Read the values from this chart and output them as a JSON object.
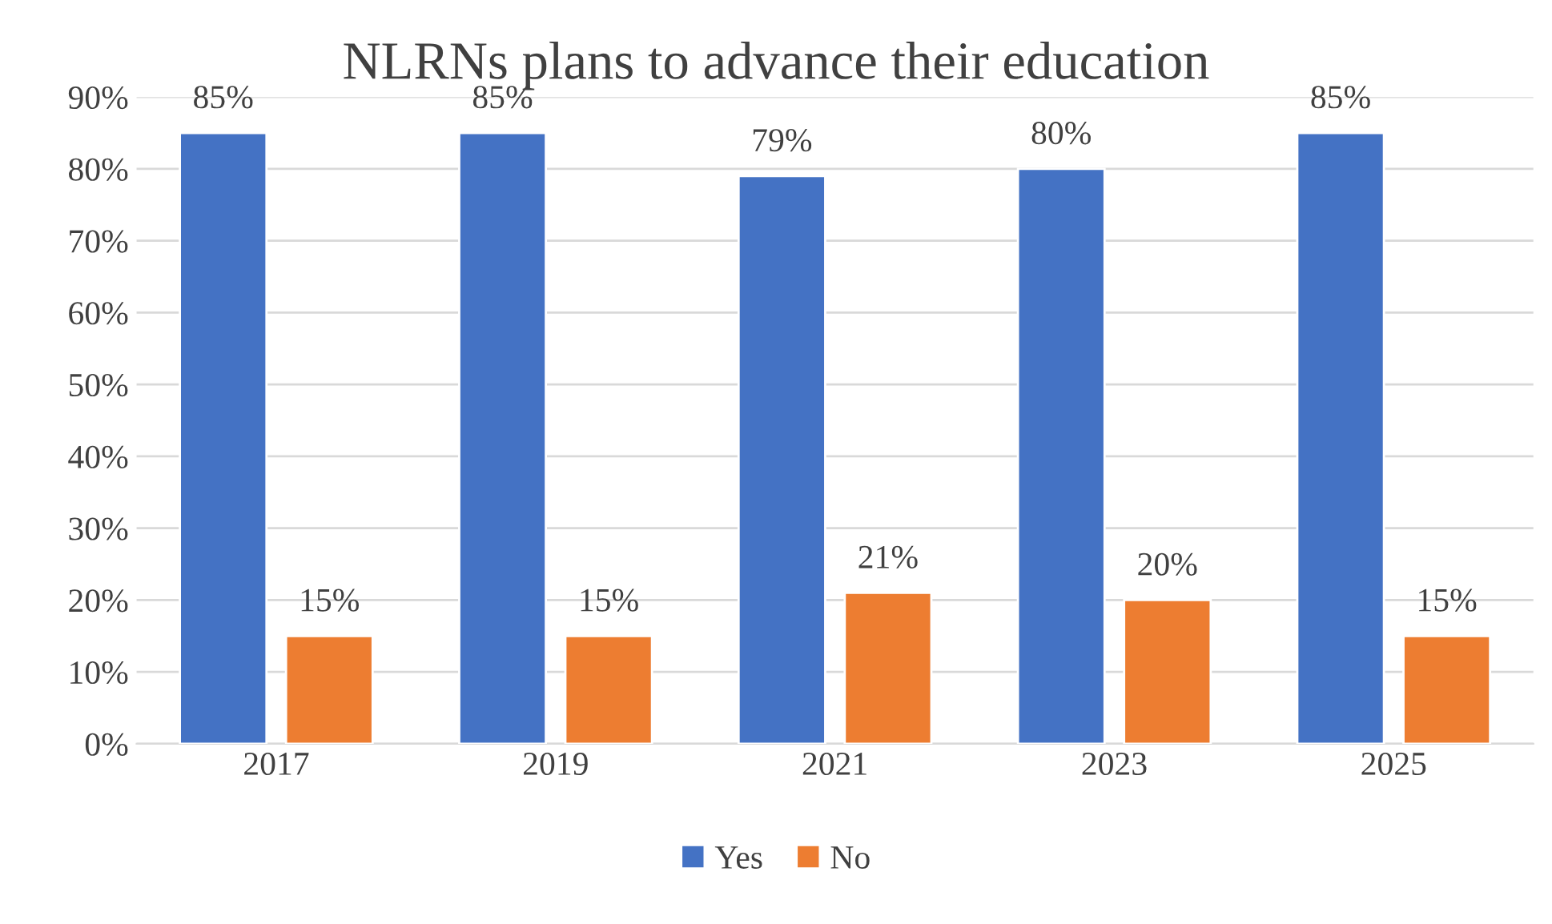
{
  "chart_data": {
    "type": "bar",
    "title": "NLRNs plans to advance their education",
    "categories": [
      "2017",
      "2019",
      "2021",
      "2023",
      "2025"
    ],
    "series": [
      {
        "name": "Yes",
        "color": "#4472c4",
        "values": [
          85,
          85,
          79,
          80,
          85
        ],
        "value_labels": [
          "85%",
          "85%",
          "79%",
          "80%",
          "85%"
        ]
      },
      {
        "name": "No",
        "color": "#ed7d31",
        "values": [
          15,
          15,
          21,
          20,
          15
        ],
        "value_labels": [
          "15%",
          "15%",
          "21%",
          "20%",
          "15%"
        ]
      }
    ],
    "ylim": [
      0,
      90
    ],
    "yticks": [
      {
        "value": 0,
        "label": "0%"
      },
      {
        "value": 10,
        "label": "10%"
      },
      {
        "value": 20,
        "label": "20%"
      },
      {
        "value": 30,
        "label": "30%"
      },
      {
        "value": 40,
        "label": "40%"
      },
      {
        "value": 50,
        "label": "50%"
      },
      {
        "value": 60,
        "label": "60%"
      },
      {
        "value": 70,
        "label": "70%"
      },
      {
        "value": 80,
        "label": "80%"
      },
      {
        "value": 90,
        "label": "90%"
      }
    ],
    "grid": "y",
    "legend": "bottom"
  }
}
